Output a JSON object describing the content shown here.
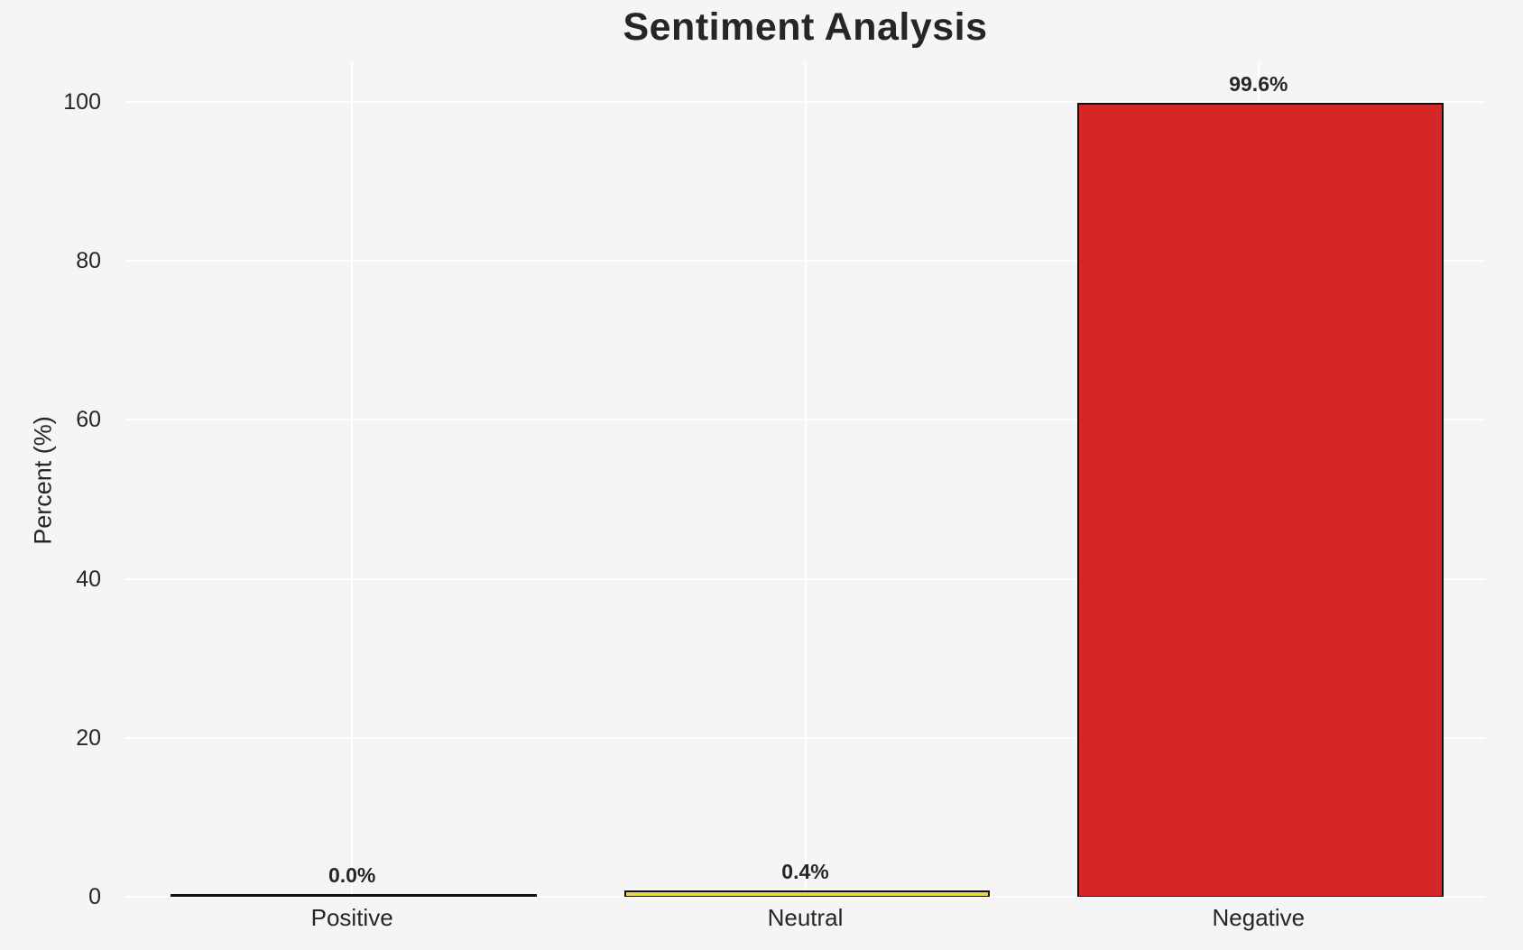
{
  "chart_data": {
    "type": "bar",
    "title": "Sentiment Analysis",
    "ylabel": "Percent (%)",
    "xlabel": "",
    "categories": [
      "Positive",
      "Neutral",
      "Negative"
    ],
    "values": [
      0.0,
      0.4,
      99.6
    ],
    "value_labels": [
      "0.0%",
      "0.4%",
      "99.6%"
    ],
    "bar_colors": [
      "#2ca02c",
      "#e8d44b",
      "#d62728"
    ],
    "bar_edge_color": "#111111",
    "yticks": [
      0,
      20,
      40,
      60,
      80,
      100
    ],
    "ylim": [
      0,
      105
    ],
    "grid": true,
    "grid_color": "#ffffff",
    "background_color": "#f5f5f6",
    "text_color": "#262626",
    "legend_position": "none"
  }
}
